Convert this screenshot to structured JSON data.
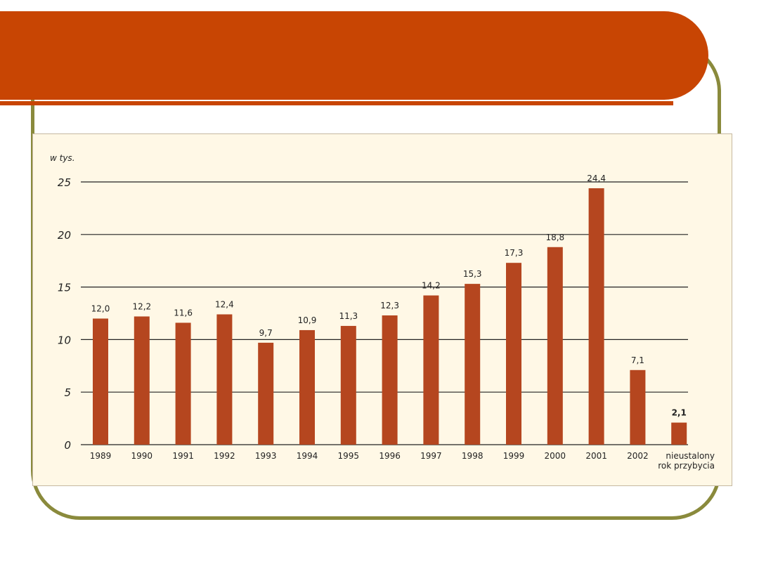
{
  "colors": {
    "header": "#c84503",
    "frame": "#8a8a3c",
    "bar": "#b5461f",
    "panel_bg": "#fff8e6",
    "grid": "#222222"
  },
  "chart_data": {
    "type": "bar",
    "unit_label": "w tys.",
    "categories": [
      "1989",
      "1990",
      "1991",
      "1992",
      "1993",
      "1994",
      "1995",
      "1996",
      "1997",
      "1998",
      "1999",
      "2000",
      "2001",
      "2002",
      "nieustalony rok przybycia"
    ],
    "category_lines": [
      [
        "1989"
      ],
      [
        "1990"
      ],
      [
        "1991"
      ],
      [
        "1992"
      ],
      [
        "1993"
      ],
      [
        "1994"
      ],
      [
        "1995"
      ],
      [
        "1996"
      ],
      [
        "1997"
      ],
      [
        "1998"
      ],
      [
        "1999"
      ],
      [
        "2000"
      ],
      [
        "2001"
      ],
      [
        "2002"
      ],
      [
        "nieustalony",
        "rok przybycia"
      ]
    ],
    "values": [
      12.0,
      12.2,
      11.6,
      12.4,
      9.7,
      10.9,
      11.3,
      12.3,
      14.2,
      15.3,
      17.3,
      18.8,
      24.4,
      7.1,
      2.1
    ],
    "value_labels": [
      "12,0",
      "12,2",
      "11,6",
      "12,4",
      "9,7",
      "10,9",
      "11,3",
      "12,3",
      "14,2",
      "15,3",
      "17,3",
      "18,8",
      "24,4",
      "7,1",
      "2,1"
    ],
    "yticks": [
      0,
      5,
      10,
      15,
      20,
      25
    ],
    "ylim": [
      0,
      25
    ],
    "grid": true,
    "legend": "none"
  }
}
